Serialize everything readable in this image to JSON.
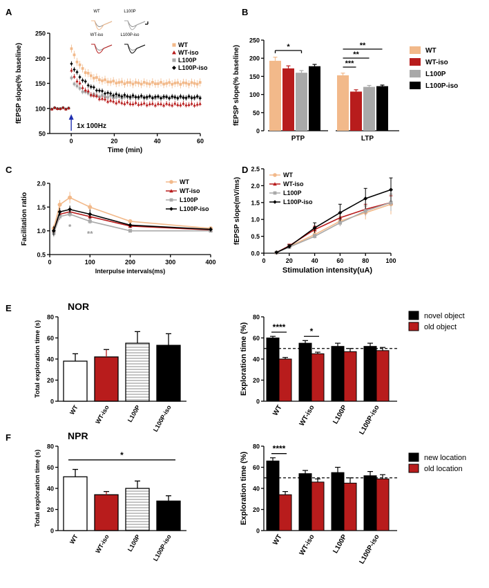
{
  "colors": {
    "WT": "#f2b98a",
    "WT_iso": "#b81c1c",
    "L100P": "#a9a9a9",
    "L100P_iso": "#000000",
    "blue_arrow": "#1f2fb0",
    "black": "#000000"
  },
  "panel_letters": [
    "A",
    "B",
    "C",
    "D",
    "E",
    "F"
  ],
  "chart_data": [
    {
      "id": "A",
      "type": "scatter",
      "ylabel": "fEPSP slope(% baseline)",
      "xlabel": "Time (min)",
      "xlim": [
        -10,
        60
      ],
      "ylim": [
        50,
        250
      ],
      "xticks": [
        0,
        20,
        40,
        60
      ],
      "yticks": [
        50,
        100,
        150,
        200,
        250
      ],
      "annotation": "1x 100Hz",
      "legend": [
        "WT",
        "WT-iso",
        "L100P",
        "L100P-iso"
      ],
      "trace_labels": [
        "WT",
        "L100P",
        "WT-iso",
        "L100P-iso"
      ],
      "series": [
        {
          "name": "WT",
          "baseline": 100,
          "peak": 220,
          "plateau": 150,
          "tau": 6
        },
        {
          "name": "WT-iso",
          "baseline": 100,
          "peak": 175,
          "plateau": 108,
          "tau": 8
        },
        {
          "name": "L100P",
          "baseline": 100,
          "peak": 160,
          "plateau": 122,
          "tau": 5
        },
        {
          "name": "L100P-iso",
          "baseline": 100,
          "peak": 190,
          "plateau": 122,
          "tau": 8
        }
      ]
    },
    {
      "id": "B",
      "type": "bar",
      "ylabel": "fEPSP slope(% baseline)",
      "ylim": [
        0,
        250
      ],
      "yticks": [
        0,
        50,
        100,
        150,
        200,
        250
      ],
      "groups": [
        "PTP",
        "LTP"
      ],
      "legend": [
        "WT",
        "WT-iso",
        "L100P",
        "L100P-iso"
      ],
      "series": [
        {
          "name": "WT",
          "values": [
            193,
            153
          ],
          "errors": [
            10,
            6
          ]
        },
        {
          "name": "WT-iso",
          "values": [
            172,
            108
          ],
          "errors": [
            7,
            5
          ]
        },
        {
          "name": "L100P",
          "values": [
            160,
            121
          ],
          "errors": [
            6,
            4
          ]
        },
        {
          "name": "L100P-iso",
          "values": [
            178,
            123
          ],
          "errors": [
            5,
            3
          ]
        }
      ],
      "significance": [
        {
          "group": 0,
          "from": 0,
          "to": 2,
          "label": "*"
        },
        {
          "group": 1,
          "from": 0,
          "to": 1,
          "label": "***"
        },
        {
          "group": 1,
          "from": 0,
          "to": 2,
          "label": "**"
        },
        {
          "group": 1,
          "from": 0,
          "to": 3,
          "label": "**"
        }
      ]
    },
    {
      "id": "C",
      "type": "line",
      "ylabel": "Facilitation ratio",
      "xlabel": "Interpulse intervals(ms)",
      "xlim": [
        0,
        400
      ],
      "ylim": [
        0.5,
        2.0
      ],
      "xticks": [
        0,
        100,
        200,
        300,
        400
      ],
      "yticks": [
        0.5,
        1.0,
        1.5,
        2.0
      ],
      "x": [
        10,
        25,
        50,
        100,
        200,
        400
      ],
      "legend": [
        "WT",
        "WT-iso",
        "L100P",
        "L100P-iso"
      ],
      "series": [
        {
          "name": "WT",
          "values": [
            1.05,
            1.55,
            1.7,
            1.5,
            1.2,
            1.05
          ],
          "errors": [
            0.08,
            0.1,
            0.12,
            0.08,
            0.04,
            0.04
          ]
        },
        {
          "name": "WT-iso",
          "values": [
            1.0,
            1.35,
            1.4,
            1.3,
            1.1,
            1.02
          ],
          "errors": [
            0.08,
            0.08,
            0.08,
            0.07,
            0.04,
            0.04
          ]
        },
        {
          "name": "L100P",
          "values": [
            0.95,
            1.3,
            1.35,
            1.2,
            1.0,
            1.0
          ],
          "errors": [
            0.08,
            0.07,
            0.06,
            0.05,
            0.03,
            0.03
          ]
        },
        {
          "name": "L100P-iso",
          "values": [
            1.0,
            1.4,
            1.45,
            1.35,
            1.12,
            1.03
          ],
          "errors": [
            0.1,
            0.08,
            0.08,
            0.1,
            0.05,
            0.05
          ]
        }
      ],
      "annotations": [
        {
          "x": 50,
          "y": 1.15,
          "label": "*"
        },
        {
          "x": 100,
          "y": 1.0,
          "label": "**"
        }
      ]
    },
    {
      "id": "D",
      "type": "line",
      "ylabel": "fEPSP slope(mV/ms)",
      "xlabel": "Stimulation intensity(uA)",
      "xlim": [
        0,
        100
      ],
      "ylim": [
        0.0,
        2.5
      ],
      "xticks": [
        0,
        20,
        40,
        60,
        80,
        100
      ],
      "yticks": [
        0.0,
        0.5,
        1.0,
        1.5,
        2.0,
        2.5
      ],
      "x": [
        10,
        20,
        40,
        60,
        80,
        100
      ],
      "legend": [
        "WT",
        "WT-iso",
        "L100P",
        "L100P-iso"
      ],
      "series": [
        {
          "name": "WT",
          "values": [
            0.02,
            0.2,
            0.55,
            0.95,
            1.2,
            1.45
          ],
          "errors": [
            0.02,
            0.05,
            0.08,
            0.15,
            0.2,
            0.3
          ]
        },
        {
          "name": "WT-iso",
          "values": [
            0.02,
            0.22,
            0.7,
            1.05,
            1.3,
            1.5
          ],
          "errors": [
            0.02,
            0.05,
            0.1,
            0.15,
            0.15,
            0.2
          ]
        },
        {
          "name": "L100P",
          "values": [
            0.02,
            0.18,
            0.5,
            0.9,
            1.25,
            1.5
          ],
          "errors": [
            0.02,
            0.04,
            0.06,
            0.1,
            0.15,
            0.25
          ]
        },
        {
          "name": "L100P-iso",
          "values": [
            0.02,
            0.2,
            0.75,
            1.2,
            1.62,
            1.88
          ],
          "errors": [
            0.02,
            0.05,
            0.15,
            0.25,
            0.3,
            0.35
          ]
        }
      ]
    },
    {
      "id": "E-left",
      "type": "bar",
      "title": "NOR",
      "ylabel": "Total exploration time (s)",
      "ylim": [
        0,
        80
      ],
      "yticks": [
        0,
        20,
        40,
        60,
        80
      ],
      "categories": [
        "WT",
        "WT-iso",
        "L100P",
        "L100P-iso"
      ],
      "values": [
        38,
        42,
        55,
        53
      ],
      "errors": [
        7,
        7,
        11,
        11
      ]
    },
    {
      "id": "E-right",
      "type": "bar",
      "ylabel": "Exploration time (%)",
      "ylim": [
        0,
        80
      ],
      "yticks": [
        0,
        20,
        40,
        60,
        80
      ],
      "reference_line": 50,
      "categories": [
        "WT",
        "WT-iso",
        "L100P",
        "L100P-iso"
      ],
      "series": [
        {
          "name": "novel object",
          "values": [
            60,
            55,
            52,
            52
          ],
          "errors": [
            1.5,
            2.5,
            3,
            3
          ]
        },
        {
          "name": "old object",
          "values": [
            40,
            45,
            47,
            48
          ],
          "errors": [
            1.5,
            1.5,
            3,
            3
          ]
        }
      ],
      "significance": [
        {
          "group": 0,
          "label": "****"
        },
        {
          "group": 1,
          "label": "*"
        }
      ]
    },
    {
      "id": "F-left",
      "type": "bar",
      "title": "NPR",
      "ylabel": "Total exploration time (s)",
      "ylim": [
        0,
        80
      ],
      "yticks": [
        0,
        20,
        40,
        60,
        80
      ],
      "categories": [
        "WT",
        "WT-iso",
        "L100P",
        "L100P-iso"
      ],
      "values": [
        51,
        34,
        40,
        28
      ],
      "errors": [
        7,
        3,
        7,
        5
      ],
      "significance": [
        {
          "from": 0,
          "to": 3,
          "label": "*"
        }
      ]
    },
    {
      "id": "F-right",
      "type": "bar",
      "ylabel": "Exploration time (%)",
      "ylim": [
        0,
        80
      ],
      "yticks": [
        0,
        20,
        40,
        60,
        80
      ],
      "reference_line": 50,
      "categories": [
        "WT",
        "WT-iso",
        "L100P",
        "L100P-iso"
      ],
      "series": [
        {
          "name": "new location",
          "values": [
            66,
            54,
            55,
            52
          ],
          "errors": [
            3,
            3,
            5,
            4
          ]
        },
        {
          "name": "old location",
          "values": [
            34,
            46,
            45,
            49
          ],
          "errors": [
            3,
            3,
            5,
            4
          ]
        }
      ],
      "significance": [
        {
          "group": 0,
          "label": "****"
        }
      ]
    }
  ]
}
